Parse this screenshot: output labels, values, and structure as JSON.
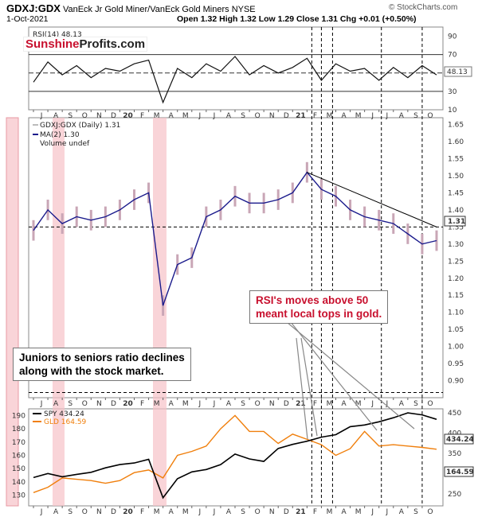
{
  "header": {
    "symbol": "GDXJ:GDX",
    "description": "VanEck Jr Gold Miner/VanEck Gold Miners NYSE",
    "date": "1-Oct-2021",
    "quote": "Open 1.32  High 1.32  Low 1.29  Close 1.31  Chg +0.01 (+0.50%)",
    "copyright": "© StockCharts.com"
  },
  "logo": {
    "part1": "Sunshine",
    "part2": "Profits.com"
  },
  "callouts": {
    "rsi_line1": "RSI's moves above 50",
    "rsi_line2": "meant local tops in gold.",
    "juniors_line1": "Juniors to seniors ratio declines",
    "juniors_line2": "along with the stock market."
  },
  "colors": {
    "ratio": "#1b1b8c",
    "ratio_bars": "#c9a6b6",
    "spy": "#000000",
    "gld": "#f07f0c",
    "highlight": "#f6c2c8",
    "callout_text_red": "#c8102e"
  },
  "chart_data": [
    {
      "panel": "rsi",
      "type": "line",
      "legend": "RSI(14) 48.13",
      "last_value_label": "48.13",
      "yticks": [
        10,
        30,
        50,
        70,
        90
      ],
      "ylim": [
        10,
        100
      ],
      "reference_lines": [
        30,
        50,
        70
      ],
      "x": [
        "2019-06",
        "2019-07",
        "2019-08",
        "2019-09",
        "2019-10",
        "2019-11",
        "2019-12",
        "2020-01",
        "2020-02",
        "2020-03",
        "2020-04",
        "2020-05",
        "2020-06",
        "2020-07",
        "2020-08",
        "2020-09",
        "2020-10",
        "2020-11",
        "2020-12",
        "2021-01",
        "2021-02",
        "2021-03",
        "2021-04",
        "2021-05",
        "2021-06",
        "2021-07",
        "2021-08",
        "2021-09",
        "2021-10"
      ],
      "y": [
        40,
        62,
        48,
        58,
        45,
        55,
        52,
        60,
        64,
        18,
        55,
        45,
        60,
        52,
        68,
        48,
        58,
        50,
        56,
        66,
        42,
        60,
        52,
        55,
        42,
        56,
        45,
        58,
        48
      ]
    },
    {
      "panel": "ratio",
      "type": "line",
      "legend": [
        "GDXJ:GDX (Daily) 1.31",
        "MA(2) 1.30",
        "Volume undef"
      ],
      "last_value_label": "1.31",
      "yticks": [
        0.9,
        0.95,
        1.0,
        1.05,
        1.1,
        1.15,
        1.2,
        1.25,
        1.3,
        1.35,
        1.4,
        1.45,
        1.5,
        1.55,
        1.6,
        1.65
      ],
      "ylim": [
        0.85,
        1.67
      ],
      "horizontal_dashed": [
        1.35,
        0.865
      ],
      "x": [
        "2019-06",
        "2019-07",
        "2019-08",
        "2019-09",
        "2019-10",
        "2019-11",
        "2019-12",
        "2020-01",
        "2020-02",
        "2020-03",
        "2020-04",
        "2020-05",
        "2020-06",
        "2020-07",
        "2020-08",
        "2020-09",
        "2020-10",
        "2020-11",
        "2020-12",
        "2021-01",
        "2021-02",
        "2021-03",
        "2021-04",
        "2021-05",
        "2021-06",
        "2021-07",
        "2021-08",
        "2021-09",
        "2021-10"
      ],
      "y": [
        1.34,
        1.4,
        1.36,
        1.38,
        1.37,
        1.38,
        1.4,
        1.43,
        1.45,
        1.12,
        1.24,
        1.26,
        1.38,
        1.4,
        1.44,
        1.42,
        1.42,
        1.43,
        1.45,
        1.51,
        1.46,
        1.44,
        1.4,
        1.38,
        1.37,
        1.36,
        1.33,
        1.3,
        1.31
      ],
      "trendline": {
        "from": [
          "2021-01",
          1.51
        ],
        "to": [
          "2021-10",
          1.35
        ]
      }
    },
    {
      "panel": "spy_gld",
      "type": "line",
      "x": [
        "2019-06",
        "2019-07",
        "2019-08",
        "2019-09",
        "2019-10",
        "2019-11",
        "2019-12",
        "2020-01",
        "2020-02",
        "2020-03",
        "2020-04",
        "2020-05",
        "2020-06",
        "2020-07",
        "2020-08",
        "2020-09",
        "2020-10",
        "2020-11",
        "2020-12",
        "2021-01",
        "2021-02",
        "2021-03",
        "2021-04",
        "2021-05",
        "2021-06",
        "2021-07",
        "2021-08",
        "2021-09",
        "2021-10"
      ],
      "series": [
        {
          "name": "SPY 434.24",
          "axis": "right",
          "last_value_label": "434.24",
          "values": [
            290,
            300,
            292,
            298,
            303,
            314,
            322,
            326,
            335,
            240,
            287,
            304,
            310,
            322,
            348,
            336,
            330,
            362,
            372,
            380,
            390,
            396,
            416,
            420,
            428,
            438,
            450,
            445,
            434
          ]
        },
        {
          "name": "GLD 164.59",
          "axis": "left",
          "last_value_label": "164.59",
          "values": [
            132,
            136,
            143,
            142,
            141,
            139,
            141,
            147,
            149,
            143,
            160,
            163,
            167,
            180,
            190,
            178,
            178,
            169,
            176,
            172,
            168,
            160,
            165,
            178,
            167,
            168,
            167,
            166,
            164.59
          ]
        }
      ],
      "left_yticks": [
        130,
        140,
        150,
        160,
        170,
        180,
        190
      ],
      "left_ylim": [
        122,
        195
      ],
      "right_yticks": [
        250,
        300,
        350,
        400,
        450
      ],
      "right_ylim": [
        220,
        460
      ]
    }
  ],
  "x_axis": {
    "labels": [
      "J",
      "A",
      "S",
      "O",
      "N",
      "D",
      "20",
      "F",
      "M",
      "A",
      "M",
      "J",
      "J",
      "A",
      "S",
      "O",
      "N",
      "D",
      "21",
      "F",
      "M",
      "A",
      "M",
      "J",
      "J",
      "A",
      "S",
      "O"
    ],
    "bold": [
      "20",
      "21"
    ]
  }
}
